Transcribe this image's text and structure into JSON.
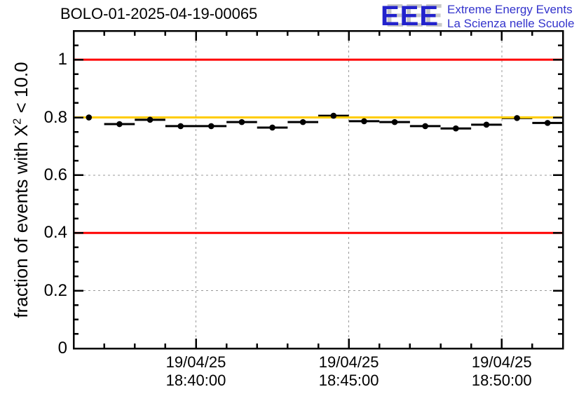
{
  "title": "BOLO-01-2025-04-19-00065",
  "logo": {
    "acronym": "EEE",
    "line1": "Extreme Energy Events",
    "line2": "La Scienza nelle Scuole",
    "blue": "#2222cc",
    "text_blue": "#3333cc",
    "shadow_gray": "#c8c8c8"
  },
  "chart_data": {
    "type": "scatter",
    "title": "BOLO-01-2025-04-19-00065",
    "ylabel": "fraction of events with X² < 10.0",
    "ylabel_parts": {
      "pre": "fraction of events with X",
      "sup": "2",
      "post": " < 10.0"
    },
    "ylim": [
      0,
      1.1
    ],
    "x_range_minutes": 16,
    "grid": true,
    "grid_color": "#999999",
    "y_ticks": [
      0,
      0.2,
      0.4,
      0.6,
      0.8,
      1.0
    ],
    "y_tick_labels": [
      "0",
      "0.2",
      "0.4",
      "0.6",
      "0.8",
      "1"
    ],
    "y_minor_step": 0.05,
    "x_minor_step_minutes": 1,
    "x_tick_labels": [
      {
        "date": "19/04/25",
        "time": "18:40:00",
        "min": 4
      },
      {
        "date": "19/04/25",
        "time": "18:45:00",
        "min": 9
      },
      {
        "date": "19/04/25",
        "time": "18:50:00",
        "min": 14
      }
    ],
    "bin_halfwidth_min": 0.5,
    "marker_color": "#000000",
    "points": [
      {
        "time": "18:36:30",
        "min": 0.5,
        "value": 0.8
      },
      {
        "time": "18:37:30",
        "min": 1.5,
        "value": 0.777
      },
      {
        "time": "18:38:30",
        "min": 2.5,
        "value": 0.792
      },
      {
        "time": "18:39:30",
        "min": 3.5,
        "value": 0.77
      },
      {
        "time": "18:40:30",
        "min": 4.5,
        "value": 0.77
      },
      {
        "time": "18:41:30",
        "min": 5.5,
        "value": 0.784
      },
      {
        "time": "18:42:30",
        "min": 6.5,
        "value": 0.765
      },
      {
        "time": "18:43:30",
        "min": 7.5,
        "value": 0.784
      },
      {
        "time": "18:44:30",
        "min": 8.5,
        "value": 0.806
      },
      {
        "time": "18:45:30",
        "min": 9.5,
        "value": 0.787
      },
      {
        "time": "18:46:30",
        "min": 10.5,
        "value": 0.784
      },
      {
        "time": "18:47:30",
        "min": 11.5,
        "value": 0.77
      },
      {
        "time": "18:48:30",
        "min": 12.5,
        "value": 0.762
      },
      {
        "time": "18:49:30",
        "min": 13.5,
        "value": 0.775
      },
      {
        "time": "18:50:30",
        "min": 14.5,
        "value": 0.798
      },
      {
        "time": "18:51:30",
        "min": 15.5,
        "value": 0.781
      }
    ],
    "ref_lines": [
      {
        "value": 1.0,
        "color": "#ff0000"
      },
      {
        "value": 0.4,
        "color": "#ff0000"
      },
      {
        "value": 0.8,
        "color": "#ffcc00"
      }
    ]
  }
}
